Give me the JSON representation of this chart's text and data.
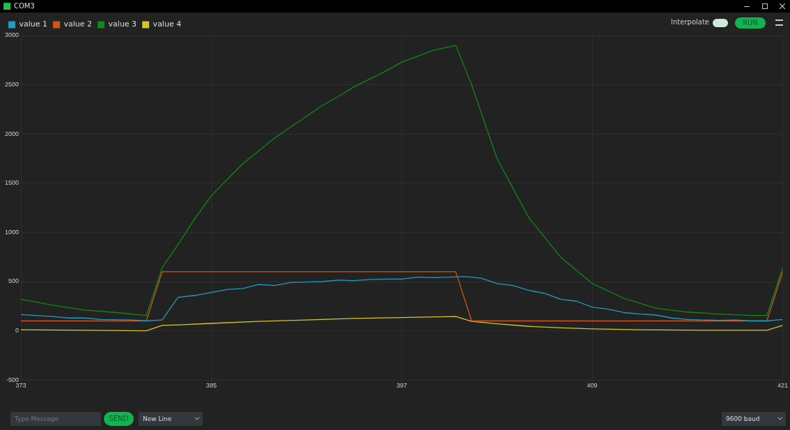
{
  "chart_data": {
    "type": "line",
    "title": "COM3",
    "annotations": [
      "Interpolate",
      "RUN",
      "Type Message",
      "SEND",
      "New Line",
      "9600 baud"
    ],
    "xlim": [
      373,
      421
    ],
    "xticks": [
      373,
      385,
      397,
      409,
      {
        "value": 421,
        "label": "421"
      }
    ],
    "ylim": [
      -500,
      3000
    ],
    "yticks": [
      -500,
      0,
      500,
      1000,
      1500,
      2000,
      2500,
      3000
    ],
    "grid": true,
    "legend": "top left",
    "marker": "none",
    "line_style": "solid",
    "series": [
      {
        "name": "value 1",
        "color": "#1f9bc4",
        "x": [
          373,
          375,
          376,
          377,
          378,
          380,
          380.9,
          381.9,
          382.9,
          384,
          385,
          386,
          387,
          388,
          389,
          390,
          391,
          392,
          393,
          394,
          395,
          396,
          397,
          398,
          399,
          400,
          401,
          402,
          403,
          404,
          405,
          406,
          407,
          408,
          409,
          410,
          411,
          412,
          413,
          414,
          415,
          416,
          417,
          418,
          419,
          420,
          421
        ],
        "values": [
          165,
          145,
          130,
          130,
          115,
          110,
          100,
          110,
          340,
          360,
          390,
          420,
          430,
          470,
          460,
          490,
          495,
          500,
          515,
          510,
          520,
          525,
          525,
          545,
          540,
          545,
          550,
          535,
          480,
          460,
          410,
          380,
          320,
          300,
          240,
          220,
          185,
          170,
          160,
          130,
          115,
          110,
          105,
          110,
          100,
          100,
          115
        ]
      },
      {
        "name": "value 2",
        "color": "#d2541c",
        "x": [
          373,
          380.9,
          381.9,
          400.4,
          401.4,
          420,
          421
        ],
        "values": [
          100,
          100,
          600,
          600,
          100,
          100,
          600
        ]
      },
      {
        "name": "value 3",
        "color": "#0e8a16",
        "x": [
          373,
          375,
          377,
          379,
          380.9,
          381.9,
          383,
          384,
          385,
          386,
          387,
          388,
          389,
          390,
          391,
          392,
          393,
          394,
          395,
          396,
          397,
          398,
          399,
          400.4,
          401.4,
          403,
          405,
          407,
          409,
          411,
          413,
          415,
          417,
          419,
          420,
          421
        ],
        "values": [
          320,
          260,
          210,
          185,
          155,
          640,
          900,
          1150,
          1370,
          1540,
          1700,
          1830,
          1960,
          2070,
          2180,
          2290,
          2380,
          2480,
          2560,
          2640,
          2730,
          2790,
          2850,
          2900,
          2500,
          1750,
          1150,
          750,
          480,
          330,
          230,
          190,
          170,
          155,
          155,
          640
        ]
      },
      {
        "name": "value 4",
        "color": "#d4c62a",
        "x": [
          373,
          377,
          380.9,
          381.9,
          383,
          385,
          388,
          391,
          394,
          397,
          400.4,
          401.4,
          403,
          405,
          407,
          409,
          412,
          416,
          420,
          421
        ],
        "values": [
          10,
          5,
          0,
          55,
          60,
          75,
          95,
          110,
          125,
          135,
          145,
          95,
          70,
          45,
          30,
          20,
          10,
          5,
          5,
          55
        ]
      }
    ]
  }
}
